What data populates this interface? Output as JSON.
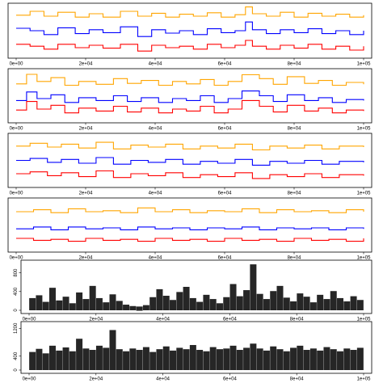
{
  "chart_data": [
    {
      "type": "line",
      "xlim": [
        0,
        100000
      ],
      "x_ticks": [
        "0e+00",
        "2e+04",
        "4e+04",
        "6e+04",
        "8e+04",
        "1e+05"
      ],
      "x_tick_values": [
        0,
        20000,
        40000,
        60000,
        80000,
        100000
      ],
      "ylim": [
        0,
        1
      ],
      "colors": [
        "#ffa500",
        "#0000ff",
        "#ff0000"
      ],
      "series": [
        {
          "color": "#ffa500",
          "x": [
            0,
            4000,
            8000,
            12000,
            17000,
            21000,
            25000,
            30000,
            35000,
            39000,
            43000,
            47000,
            51000,
            55000,
            59000,
            63000,
            66000,
            68000,
            72000,
            76000,
            80000,
            84000,
            88000,
            92000,
            96000,
            100000
          ],
          "y": [
            0.82,
            0.9,
            0.8,
            0.88,
            0.78,
            0.85,
            0.78,
            0.9,
            0.8,
            0.86,
            0.78,
            0.84,
            0.8,
            0.87,
            0.78,
            0.83,
            0.99,
            0.85,
            0.8,
            0.88,
            0.78,
            0.86,
            0.8,
            0.84,
            0.78,
            0.82
          ]
        },
        {
          "color": "#0000ff",
          "x": [
            0,
            4000,
            8000,
            12000,
            17000,
            21000,
            25000,
            30000,
            35000,
            39000,
            43000,
            47000,
            51000,
            55000,
            59000,
            63000,
            66000,
            68000,
            72000,
            76000,
            80000,
            84000,
            88000,
            92000,
            96000,
            100000
          ],
          "y": [
            0.55,
            0.5,
            0.42,
            0.56,
            0.44,
            0.52,
            0.46,
            0.58,
            0.38,
            0.52,
            0.45,
            0.5,
            0.42,
            0.54,
            0.46,
            0.5,
            0.68,
            0.52,
            0.44,
            0.52,
            0.46,
            0.54,
            0.44,
            0.5,
            0.42,
            0.5
          ]
        },
        {
          "color": "#ff0000",
          "x": [
            0,
            4000,
            8000,
            12000,
            17000,
            21000,
            25000,
            30000,
            35000,
            39000,
            43000,
            47000,
            51000,
            55000,
            59000,
            63000,
            66000,
            68000,
            72000,
            76000,
            80000,
            84000,
            88000,
            92000,
            96000,
            100000
          ],
          "y": [
            0.22,
            0.18,
            0.12,
            0.22,
            0.15,
            0.2,
            0.14,
            0.22,
            0.08,
            0.2,
            0.15,
            0.18,
            0.12,
            0.22,
            0.15,
            0.2,
            0.3,
            0.18,
            0.12,
            0.2,
            0.14,
            0.22,
            0.12,
            0.18,
            0.1,
            0.18
          ]
        }
      ]
    },
    {
      "type": "line",
      "xlim": [
        0,
        100000
      ],
      "x_ticks": [
        "0e+00",
        "2e+04",
        "4e+04",
        "6e+04",
        "8e+04",
        "1e+05"
      ],
      "x_tick_values": [
        0,
        20000,
        40000,
        60000,
        80000,
        100000
      ],
      "ylim": [
        0,
        1
      ],
      "colors": [
        "#ffa500",
        "#0000ff",
        "#ff0000"
      ],
      "series": [
        {
          "color": "#ffa500",
          "x": [
            0,
            3000,
            6000,
            10000,
            14000,
            18000,
            23000,
            28000,
            32000,
            36000,
            41000,
            45000,
            49000,
            53000,
            57000,
            61000,
            65000,
            70000,
            74000,
            78000,
            83000,
            87000,
            91000,
            95000,
            100000
          ],
          "y": [
            0.75,
            0.95,
            0.8,
            0.88,
            0.72,
            0.8,
            0.74,
            0.86,
            0.76,
            0.82,
            0.72,
            0.8,
            0.75,
            0.84,
            0.72,
            0.8,
            0.94,
            0.86,
            0.74,
            0.9,
            0.76,
            0.82,
            0.72,
            0.78,
            0.74
          ]
        },
        {
          "color": "#0000ff",
          "x": [
            0,
            3000,
            6000,
            10000,
            14000,
            18000,
            23000,
            28000,
            32000,
            36000,
            41000,
            45000,
            49000,
            53000,
            57000,
            61000,
            65000,
            70000,
            74000,
            78000,
            83000,
            87000,
            91000,
            95000,
            100000
          ],
          "y": [
            0.4,
            0.58,
            0.44,
            0.52,
            0.36,
            0.46,
            0.4,
            0.5,
            0.38,
            0.46,
            0.36,
            0.44,
            0.4,
            0.5,
            0.36,
            0.44,
            0.6,
            0.5,
            0.38,
            0.52,
            0.4,
            0.46,
            0.36,
            0.42,
            0.4
          ]
        },
        {
          "color": "#ff0000",
          "x": [
            0,
            3000,
            6000,
            10000,
            14000,
            18000,
            23000,
            28000,
            32000,
            36000,
            41000,
            45000,
            49000,
            53000,
            57000,
            61000,
            65000,
            70000,
            74000,
            78000,
            83000,
            87000,
            91000,
            95000,
            100000
          ],
          "y": [
            0.2,
            0.38,
            0.22,
            0.3,
            0.14,
            0.24,
            0.18,
            0.28,
            0.16,
            0.24,
            0.14,
            0.22,
            0.18,
            0.28,
            0.14,
            0.22,
            0.4,
            0.28,
            0.16,
            0.3,
            0.18,
            0.24,
            0.14,
            0.2,
            0.18
          ]
        }
      ]
    },
    {
      "type": "line",
      "xlim": [
        0,
        100000
      ],
      "x_ticks": [
        "0e+00",
        "2e+04",
        "4e+04",
        "6e+04",
        "8e+04",
        "1e+05"
      ],
      "x_tick_values": [
        0,
        20000,
        40000,
        60000,
        80000,
        100000
      ],
      "ylim": [
        0,
        1
      ],
      "colors": [
        "#ffa500",
        "#0000ff",
        "#ff0000"
      ],
      "series": [
        {
          "color": "#ffa500",
          "x": [
            0,
            4000,
            9000,
            13000,
            18000,
            23000,
            28000,
            33000,
            38000,
            43000,
            48000,
            53000,
            58000,
            63000,
            68000,
            73000,
            78000,
            83000,
            88000,
            93000,
            100000
          ],
          "y": [
            0.8,
            0.86,
            0.78,
            0.84,
            0.76,
            0.88,
            0.74,
            0.82,
            0.78,
            0.84,
            0.74,
            0.8,
            0.76,
            0.84,
            0.72,
            0.8,
            0.76,
            0.82,
            0.74,
            0.8,
            0.78
          ]
        },
        {
          "color": "#0000ff",
          "x": [
            0,
            4000,
            9000,
            13000,
            18000,
            23000,
            28000,
            33000,
            38000,
            43000,
            48000,
            53000,
            58000,
            63000,
            68000,
            73000,
            78000,
            83000,
            88000,
            93000,
            100000
          ],
          "y": [
            0.5,
            0.54,
            0.46,
            0.52,
            0.44,
            0.56,
            0.42,
            0.5,
            0.46,
            0.52,
            0.42,
            0.48,
            0.44,
            0.52,
            0.4,
            0.48,
            0.44,
            0.5,
            0.42,
            0.48,
            0.46
          ]
        },
        {
          "color": "#ff0000",
          "x": [
            0,
            4000,
            9000,
            13000,
            18000,
            23000,
            28000,
            33000,
            38000,
            43000,
            48000,
            53000,
            58000,
            63000,
            68000,
            73000,
            78000,
            83000,
            88000,
            93000,
            100000
          ],
          "y": [
            0.22,
            0.26,
            0.18,
            0.24,
            0.16,
            0.28,
            0.14,
            0.22,
            0.18,
            0.24,
            0.14,
            0.2,
            0.16,
            0.24,
            0.12,
            0.2,
            0.16,
            0.22,
            0.14,
            0.2,
            0.18
          ]
        }
      ]
    },
    {
      "type": "line",
      "xlim": [
        0,
        100000
      ],
      "x_ticks": [
        "0e+00",
        "2e+04",
        "4e+04",
        "6e+04",
        "8e+04",
        "1e+05"
      ],
      "x_tick_values": [
        0,
        20000,
        40000,
        60000,
        80000,
        100000
      ],
      "ylim": [
        0,
        1
      ],
      "colors": [
        "#ffa500",
        "#0000ff",
        "#ff0000"
      ],
      "series": [
        {
          "color": "#ffa500",
          "x": [
            0,
            5000,
            10000,
            15000,
            20000,
            25000,
            30000,
            35000,
            40000,
            45000,
            50000,
            55000,
            60000,
            65000,
            70000,
            75000,
            80000,
            85000,
            90000,
            95000,
            100000
          ],
          "y": [
            0.78,
            0.82,
            0.76,
            0.84,
            0.78,
            0.8,
            0.76,
            0.86,
            0.78,
            0.82,
            0.76,
            0.8,
            0.78,
            0.84,
            0.76,
            0.82,
            0.78,
            0.8,
            0.76,
            0.82,
            0.78
          ]
        },
        {
          "color": "#0000ff",
          "x": [
            0,
            5000,
            10000,
            15000,
            20000,
            25000,
            30000,
            35000,
            40000,
            45000,
            50000,
            55000,
            60000,
            65000,
            70000,
            75000,
            80000,
            85000,
            90000,
            95000,
            100000
          ],
          "y": [
            0.42,
            0.46,
            0.4,
            0.46,
            0.42,
            0.44,
            0.4,
            0.46,
            0.42,
            0.44,
            0.4,
            0.44,
            0.42,
            0.46,
            0.4,
            0.44,
            0.42,
            0.44,
            0.4,
            0.44,
            0.42
          ]
        },
        {
          "color": "#ff0000",
          "x": [
            0,
            5000,
            10000,
            15000,
            20000,
            25000,
            30000,
            35000,
            40000,
            45000,
            50000,
            55000,
            60000,
            65000,
            70000,
            75000,
            80000,
            85000,
            90000,
            95000,
            100000
          ],
          "y": [
            0.22,
            0.18,
            0.2,
            0.16,
            0.22,
            0.18,
            0.2,
            0.16,
            0.22,
            0.18,
            0.2,
            0.16,
            0.22,
            0.18,
            0.2,
            0.16,
            0.22,
            0.18,
            0.2,
            0.16,
            0.22
          ]
        }
      ]
    },
    {
      "type": "scatter",
      "xlim": [
        0,
        100000
      ],
      "ylim": [
        0,
        1000
      ],
      "x_ticks": [
        "0e+00",
        "2e+04",
        "4e+04",
        "6e+04",
        "8e+04",
        "1e+05"
      ],
      "x_tick_values": [
        0,
        20000,
        40000,
        60000,
        80000,
        100000
      ],
      "y_ticks": [
        "0",
        "400",
        "800"
      ],
      "y_tick_values": [
        0,
        400,
        800
      ],
      "color": "#000000",
      "x": [
        1000,
        3000,
        5000,
        7000,
        9000,
        11000,
        13000,
        15000,
        17000,
        19000,
        21000,
        23000,
        25000,
        27000,
        29000,
        31000,
        33000,
        35000,
        37000,
        39000,
        41000,
        43000,
        45000,
        47000,
        49000,
        51000,
        53000,
        55000,
        57000,
        59000,
        61000,
        63000,
        65000,
        67000,
        69000,
        71000,
        73000,
        75000,
        77000,
        79000,
        81000,
        83000,
        85000,
        87000,
        89000,
        91000,
        93000,
        95000,
        97000,
        99000
      ],
      "y": [
        260,
        320,
        180,
        480,
        210,
        290,
        150,
        380,
        240,
        520,
        260,
        170,
        340,
        200,
        120,
        90,
        70,
        110,
        280,
        450,
        310,
        220,
        390,
        500,
        260,
        180,
        330,
        240,
        150,
        280,
        560,
        300,
        430,
        980,
        350,
        240,
        410,
        520,
        270,
        190,
        360,
        290,
        170,
        330,
        240,
        410,
        260,
        190,
        300,
        220
      ]
    },
    {
      "type": "scatter",
      "xlim": [
        0,
        100000
      ],
      "ylim": [
        0,
        1300
      ],
      "x_ticks": [
        "0e+00",
        "2e+04",
        "4e+04",
        "6e+04",
        "8e+04",
        "1e+05"
      ],
      "x_tick_values": [
        0,
        20000,
        40000,
        60000,
        80000,
        100000
      ],
      "y_ticks": [
        "0",
        "400",
        "1200"
      ],
      "y_tick_values": [
        0,
        400,
        1200
      ],
      "color": "#000000",
      "x": [
        1000,
        3000,
        5000,
        7000,
        9000,
        11000,
        13000,
        15000,
        17000,
        19000,
        21000,
        23000,
        25000,
        27000,
        29000,
        31000,
        33000,
        35000,
        37000,
        39000,
        41000,
        43000,
        45000,
        47000,
        49000,
        51000,
        53000,
        55000,
        57000,
        59000,
        61000,
        63000,
        65000,
        67000,
        69000,
        71000,
        73000,
        75000,
        77000,
        79000,
        81000,
        83000,
        85000,
        87000,
        89000,
        91000,
        93000,
        95000,
        97000,
        99000
      ],
      "y": [
        520,
        610,
        480,
        700,
        560,
        650,
        540,
        900,
        620,
        580,
        700,
        640,
        1150,
        600,
        540,
        620,
        580,
        660,
        520,
        600,
        680,
        560,
        640,
        600,
        720,
        580,
        540,
        660,
        600,
        620,
        700,
        580,
        640,
        760,
        620,
        560,
        680,
        600,
        540,
        640,
        700,
        580,
        620,
        560,
        660,
        600,
        540,
        620,
        580,
        640
      ]
    }
  ]
}
